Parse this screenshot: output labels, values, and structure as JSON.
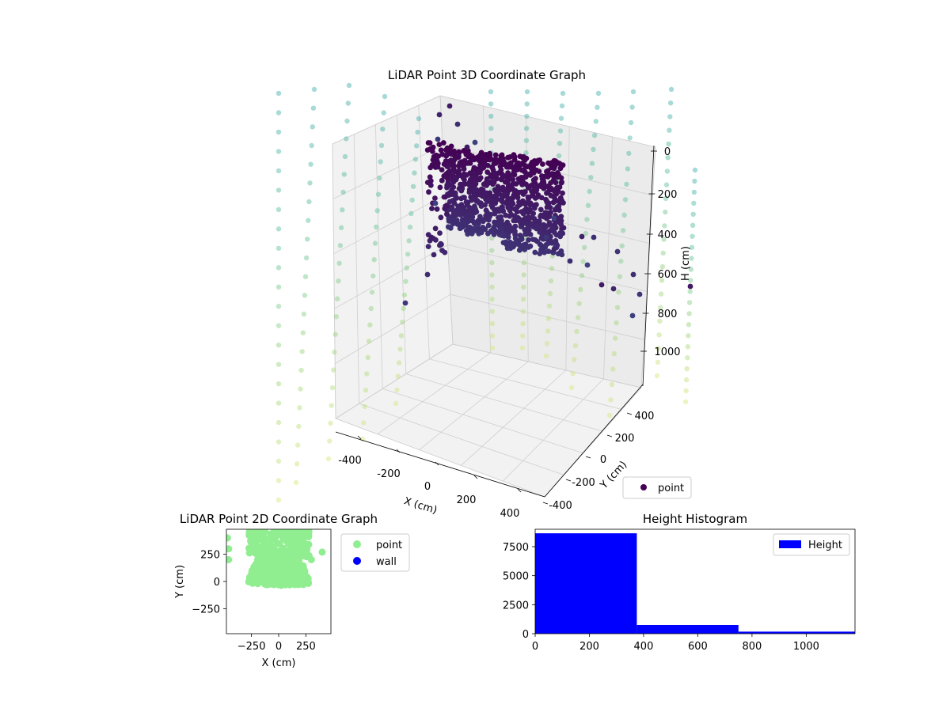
{
  "colors": {
    "point_3d": "#440154",
    "wall_3d": "viridis-light",
    "point_2d": "#90ee90",
    "wall_2d": "#0000ff",
    "hist_bar": "#0000ff",
    "pane": "#f2f2f2",
    "grid": "#b0b0b0"
  },
  "chart_data": [
    {
      "type": "scatter",
      "subtype": "3d",
      "title": "LiDAR Point 3D Coordinate Graph",
      "xlabel": "X (cm)",
      "ylabel": "Y (cm)",
      "zlabel": "H (cm)",
      "xlim": [
        -480,
        480
      ],
      "ylim": [
        -480,
        480
      ],
      "zlim": [
        1150,
        0
      ],
      "xticks": [
        "-400",
        "-200",
        "0",
        "200",
        "400"
      ],
      "yticks": [
        "-400",
        "-200",
        "0",
        "200",
        "400"
      ],
      "zticks": [
        "0",
        "200",
        "400",
        "600",
        "800",
        "1000"
      ],
      "legend": {
        "position": "lower-right",
        "entries": [
          "point"
        ]
      },
      "series": [
        {
          "name": "point",
          "color": "#440154",
          "description_points": [
            [
              -180,
              300,
              80
            ],
            [
              -120,
              260,
              90
            ],
            [
              -60,
              220,
              100
            ],
            [
              0,
              200,
              110
            ],
            [
              60,
              190,
              130
            ],
            [
              -150,
              200,
              250
            ],
            [
              -80,
              150,
              300
            ],
            [
              0,
              100,
              350
            ],
            [
              80,
              60,
              380
            ],
            [
              120,
              20,
              400
            ],
            [
              -200,
              0,
              420
            ],
            [
              -140,
              -40,
              430
            ],
            [
              -60,
              -80,
              440
            ],
            [
              20,
              -120,
              450
            ],
            [
              100,
              -160,
              430
            ],
            [
              200,
              -200,
              420
            ],
            [
              260,
              -250,
              500
            ],
            [
              320,
              -300,
              600
            ],
            [
              380,
              -340,
              700
            ]
          ]
        },
        {
          "name": "wall",
          "color": "viridis",
          "pattern": "grid of wall points along -480 / +480 boundaries, H 0–1150"
        }
      ]
    },
    {
      "type": "scatter",
      "title": "LiDAR Point 2D Coordinate Graph",
      "xlabel": "X (cm)",
      "ylabel": "Y (cm)",
      "xlim": [
        -480,
        480
      ],
      "ylim": [
        -480,
        480
      ],
      "xticks": [
        "−250",
        "0",
        "250"
      ],
      "yticks": [
        "250",
        "0",
        "−250"
      ],
      "legend": {
        "position": "outside-right",
        "entries": [
          "point",
          "wall"
        ]
      },
      "series": [
        {
          "name": "point",
          "color": "#90ee90"
        },
        {
          "name": "wall",
          "color": "#0000ff"
        }
      ]
    },
    {
      "type": "bar",
      "subtype": "histogram",
      "title": "Height Histogram",
      "xlim": [
        0,
        1180
      ],
      "ylim": [
        0,
        9000
      ],
      "xticks": [
        "0",
        "200",
        "400",
        "600",
        "800",
        "1000"
      ],
      "yticks": [
        "0",
        "2500",
        "5000",
        "7500"
      ],
      "legend": {
        "position": "top-right",
        "entries": [
          "Height"
        ]
      },
      "bins": [
        [
          0,
          375
        ],
        [
          375,
          750
        ],
        [
          750,
          1180
        ]
      ],
      "series": [
        {
          "name": "Height",
          "values": [
            8650,
            750,
            180
          ]
        }
      ]
    }
  ]
}
